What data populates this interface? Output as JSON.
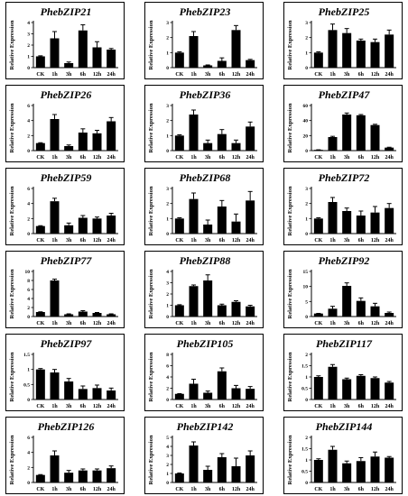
{
  "y_axis_label": "Relative Expression",
  "chart_data": [
    {
      "type": "bar",
      "title": "PhebZIP21",
      "categories": [
        "CK",
        "1h",
        "3h",
        "6h",
        "12h",
        "24h"
      ],
      "values": [
        1.0,
        2.6,
        0.4,
        3.3,
        1.8,
        1.6
      ],
      "errors": [
        0.05,
        0.6,
        0.1,
        0.5,
        0.5,
        0.1
      ],
      "ylim": [
        0,
        4
      ],
      "yticks": [
        0,
        1,
        2,
        3,
        4
      ],
      "ylabel": "Relative Expression"
    },
    {
      "type": "bar",
      "title": "PhebZIP23",
      "categories": [
        "CK",
        "1h",
        "3h",
        "6h",
        "12h",
        "24h"
      ],
      "values": [
        1.0,
        2.1,
        0.15,
        0.45,
        2.5,
        0.5
      ],
      "errors": [
        0.05,
        0.3,
        0.03,
        0.2,
        0.3,
        0.05
      ],
      "ylim": [
        0,
        3
      ],
      "yticks": [
        0,
        1,
        2,
        3
      ],
      "ylabel": "Relative Expression"
    },
    {
      "type": "bar",
      "title": "PhebZIP25",
      "categories": [
        "CK",
        "1h",
        "3h",
        "6h",
        "12h",
        "24h"
      ],
      "values": [
        1.0,
        2.5,
        2.3,
        1.8,
        1.7,
        2.2
      ],
      "errors": [
        0.05,
        0.4,
        0.3,
        0.1,
        0.2,
        0.3
      ],
      "ylim": [
        0,
        3
      ],
      "yticks": [
        0,
        1,
        2,
        3
      ],
      "ylabel": "Relative Expression"
    },
    {
      "type": "bar",
      "title": "PhebZIP26",
      "categories": [
        "CK",
        "1h",
        "3h",
        "6h",
        "12h",
        "24h"
      ],
      "values": [
        1.0,
        4.2,
        0.6,
        2.4,
        2.3,
        3.9
      ],
      "errors": [
        0.05,
        0.6,
        0.15,
        0.5,
        0.4,
        0.5
      ],
      "ylim": [
        0,
        6
      ],
      "yticks": [
        0,
        2,
        4,
        6
      ],
      "ylabel": "Relative Expression"
    },
    {
      "type": "bar",
      "title": "PhebZIP36",
      "categories": [
        "CK",
        "1h",
        "3h",
        "6h",
        "12h",
        "24h"
      ],
      "values": [
        1.0,
        2.4,
        0.5,
        1.1,
        0.5,
        1.6
      ],
      "errors": [
        0.05,
        0.3,
        0.2,
        0.3,
        0.2,
        0.3
      ],
      "ylim": [
        0,
        3
      ],
      "yticks": [
        0,
        1,
        2,
        3
      ],
      "ylabel": "Relative Expression"
    },
    {
      "type": "bar",
      "title": "PhebZIP47",
      "categories": [
        "CK",
        "1h",
        "3h",
        "6h",
        "12h",
        "24h"
      ],
      "values": [
        1.0,
        18,
        48,
        47,
        34,
        4
      ],
      "errors": [
        0.1,
        1.0,
        2.0,
        1.0,
        1.0,
        0.5
      ],
      "ylim": [
        0,
        60
      ],
      "yticks": [
        0,
        20,
        40,
        60
      ],
      "ylabel": "Relative Expression"
    },
    {
      "type": "bar",
      "title": "PhebZIP59",
      "categories": [
        "CK",
        "1h",
        "3h",
        "6h",
        "12h",
        "24h"
      ],
      "values": [
        1.0,
        4.3,
        1.1,
        2.1,
        2.0,
        2.4
      ],
      "errors": [
        0.05,
        0.4,
        0.3,
        0.3,
        0.2,
        0.3
      ],
      "ylim": [
        0,
        6
      ],
      "yticks": [
        0,
        2,
        4,
        6
      ],
      "ylabel": "Relative Expression"
    },
    {
      "type": "bar",
      "title": "PhebZIP68",
      "categories": [
        "CK",
        "1h",
        "3h",
        "6h",
        "12h",
        "24h"
      ],
      "values": [
        1.0,
        2.3,
        0.6,
        1.8,
        0.8,
        2.2
      ],
      "errors": [
        0.05,
        0.4,
        0.3,
        0.4,
        0.5,
        0.6
      ],
      "ylim": [
        0,
        3
      ],
      "yticks": [
        0,
        1,
        2,
        3
      ],
      "ylabel": "Relative Expression"
    },
    {
      "type": "bar",
      "title": "PhebZIP72",
      "categories": [
        "CK",
        "1h",
        "3h",
        "6h",
        "12h",
        "24h"
      ],
      "values": [
        1.0,
        2.1,
        1.5,
        1.2,
        1.4,
        1.7
      ],
      "errors": [
        0.05,
        0.3,
        0.2,
        0.3,
        0.4,
        0.3
      ],
      "ylim": [
        0,
        3
      ],
      "yticks": [
        0,
        1,
        2,
        3
      ],
      "ylabel": "Relative Expression"
    },
    {
      "type": "bar",
      "title": "PhebZIP77",
      "categories": [
        "CK",
        "1h",
        "3h",
        "6h",
        "12h",
        "24h"
      ],
      "values": [
        1.0,
        8.0,
        0.5,
        1.1,
        0.8,
        0.5
      ],
      "errors": [
        0.05,
        0.3,
        0.1,
        0.2,
        0.1,
        0.1
      ],
      "ylim": [
        0,
        10
      ],
      "yticks": [
        0,
        2,
        4,
        6,
        8,
        10
      ],
      "ylabel": "Relative Expression"
    },
    {
      "type": "bar",
      "title": "PhebZIP88",
      "categories": [
        "CK",
        "1h",
        "3h",
        "6h",
        "12h",
        "24h"
      ],
      "values": [
        1.0,
        2.7,
        3.2,
        1.0,
        1.3,
        0.9
      ],
      "errors": [
        0.05,
        0.1,
        0.5,
        0.1,
        0.1,
        0.1
      ],
      "ylim": [
        0,
        4
      ],
      "yticks": [
        0,
        1,
        2,
        3,
        4
      ],
      "ylabel": "Relative Expression"
    },
    {
      "type": "bar",
      "title": "PhebZIP92",
      "categories": [
        "CK",
        "1h",
        "3h",
        "6h",
        "12h",
        "24h"
      ],
      "values": [
        1.0,
        2.6,
        10.2,
        5.2,
        3.4,
        1.2
      ],
      "errors": [
        0.05,
        0.8,
        1.0,
        1.0,
        1.0,
        0.3
      ],
      "ylim": [
        0,
        15
      ],
      "yticks": [
        0,
        5,
        10,
        15
      ],
      "ylabel": "Relative Expression"
    },
    {
      "type": "bar",
      "title": "PhebZIP97",
      "categories": [
        "CK",
        "1h",
        "3h",
        "6h",
        "12h",
        "24h"
      ],
      "values": [
        1.0,
        0.9,
        0.6,
        0.35,
        0.38,
        0.3
      ],
      "errors": [
        0.03,
        0.1,
        0.1,
        0.1,
        0.1,
        0.08
      ],
      "ylim": [
        0,
        1.5
      ],
      "yticks": [
        0,
        0.5,
        1.0,
        1.5
      ],
      "ylabel": "Relative Expression"
    },
    {
      "type": "bar",
      "title": "PhebZIP105",
      "categories": [
        "CK",
        "1h",
        "3h",
        "6h",
        "12h",
        "24h"
      ],
      "values": [
        1.0,
        2.8,
        1.2,
        5.0,
        2.0,
        1.9
      ],
      "errors": [
        0.05,
        0.8,
        0.3,
        0.6,
        0.5,
        0.4
      ],
      "ylim": [
        0,
        8
      ],
      "yticks": [
        0,
        2,
        4,
        6,
        8
      ],
      "ylabel": "Relative Expression"
    },
    {
      "type": "bar",
      "title": "PhebZIP117",
      "categories": [
        "CK",
        "1h",
        "3h",
        "6h",
        "12h",
        "24h"
      ],
      "values": [
        1.0,
        1.45,
        0.9,
        1.05,
        0.95,
        0.75
      ],
      "errors": [
        0.05,
        0.1,
        0.05,
        0.05,
        0.05,
        0.05
      ],
      "ylim": [
        0,
        2.0
      ],
      "yticks": [
        0,
        0.5,
        1.0,
        1.5,
        2.0
      ],
      "ylabel": "Relative Expression"
    },
    {
      "type": "bar",
      "title": "PhebZIP126",
      "categories": [
        "CK",
        "1h",
        "3h",
        "6h",
        "12h",
        "24h"
      ],
      "values": [
        1.0,
        3.6,
        1.3,
        1.6,
        1.6,
        1.9
      ],
      "errors": [
        0.05,
        0.6,
        0.3,
        0.2,
        0.2,
        0.3
      ],
      "ylim": [
        0,
        6
      ],
      "yticks": [
        0,
        2,
        4,
        6
      ],
      "ylabel": "Relative Expression"
    },
    {
      "type": "bar",
      "title": "PhebZIP142",
      "categories": [
        "CK",
        "1h",
        "3h",
        "6h",
        "12h",
        "24h"
      ],
      "values": [
        1.0,
        4.1,
        1.4,
        2.8,
        1.8,
        3.0
      ],
      "errors": [
        0.05,
        0.4,
        0.4,
        0.4,
        0.9,
        0.5
      ],
      "ylim": [
        0,
        5
      ],
      "yticks": [
        0,
        1,
        2,
        3,
        4,
        5
      ],
      "ylabel": "Relative Expression"
    },
    {
      "type": "bar",
      "title": "PhebZIP144",
      "categories": [
        "CK",
        "1h",
        "3h",
        "6h",
        "12h",
        "24h"
      ],
      "values": [
        1.0,
        1.45,
        0.85,
        0.95,
        1.15,
        1.1
      ],
      "errors": [
        0.05,
        0.15,
        0.1,
        0.15,
        0.2,
        0.05
      ],
      "ylim": [
        0,
        2.0
      ],
      "yticks": [
        0,
        0.5,
        1.0,
        1.5,
        2.0
      ],
      "ylabel": "Relative Expression"
    }
  ]
}
